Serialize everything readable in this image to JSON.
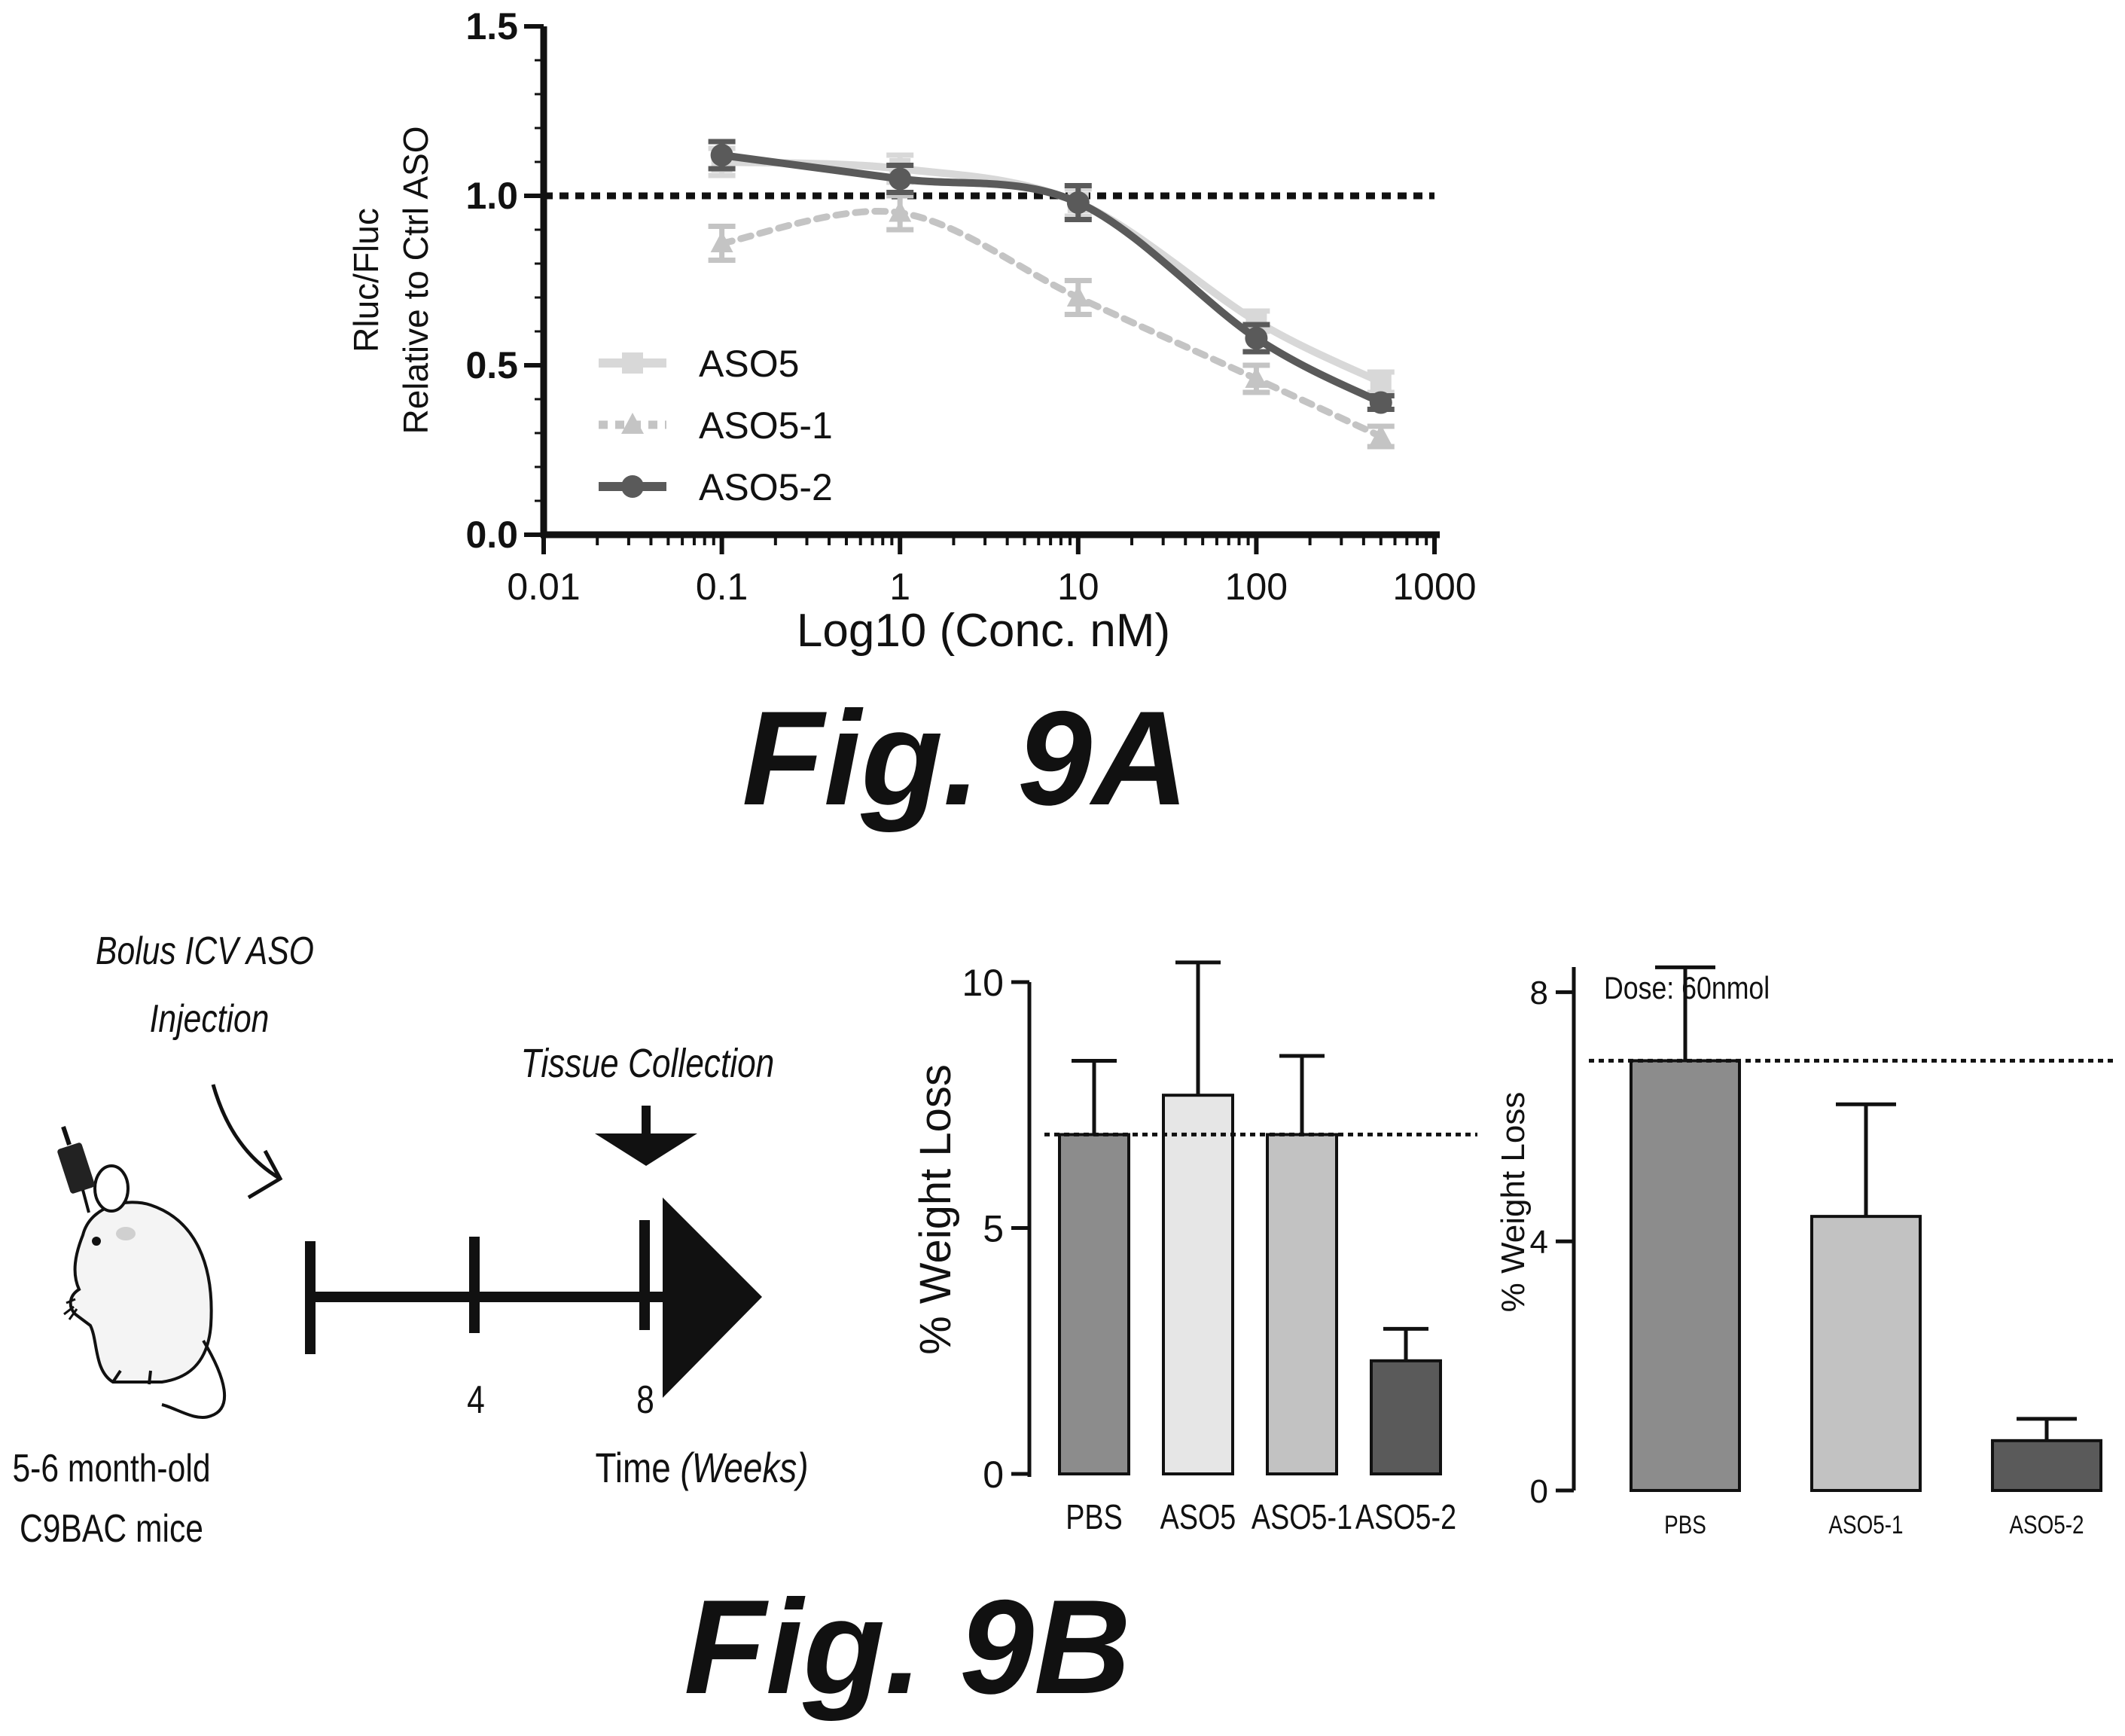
{
  "figure_labels": {
    "fig_9a": "Fig. 9A",
    "fig_9b": "Fig. 9B"
  },
  "colors": {
    "aso5": "#d8d8d8",
    "aso5_1": "#c4c4c4",
    "aso5_2": "#5a5a5a",
    "pbs_bar": "#8c8c8c",
    "aso5_bar": "#e6e6e6",
    "aso5_1_bar": "#c2c2c2",
    "aso5_2_bar": "#5a5a5a",
    "ink": "#111111"
  },
  "schematic": {
    "injection_label_line1": "Bolus ICV ASO",
    "injection_label_line2": "Injection",
    "collection_label": "Tissue Collection",
    "tick_4": "4",
    "tick_8": "8",
    "time_label_prefix": "Time ",
    "time_label_units": "(Weeks)",
    "mice_label_line1": "5-6 month-old",
    "mice_label_line2": "C9BAC mice"
  },
  "chart_data": [
    {
      "type": "line",
      "title": "",
      "xlabel": "Log10 (Conc. nM)",
      "ylabel_line1": "Rluc/Fluc",
      "ylabel_line2": "Relative to Ctrl ASO",
      "xscale": "log",
      "xlim": [
        0.01,
        1000
      ],
      "ylim": [
        0.0,
        1.5
      ],
      "xticks": [
        "0.01",
        "0.1",
        "1",
        "10",
        "100",
        "1000"
      ],
      "yticks": [
        "0.0",
        "0.5",
        "1.0",
        "1.5"
      ],
      "reference_line": 1.0,
      "legend_position": "lower-left",
      "x": [
        0.1,
        1,
        10,
        100,
        500
      ],
      "series": [
        {
          "name": "ASO5",
          "values": [
            1.1,
            1.08,
            0.98,
            0.63,
            0.45
          ],
          "errors": [
            0.04,
            0.04,
            0.04,
            0.03,
            0.03
          ],
          "style": "solid-square"
        },
        {
          "name": "ASO5-1",
          "values": [
            0.86,
            0.95,
            0.7,
            0.46,
            0.29
          ],
          "errors": [
            0.05,
            0.05,
            0.05,
            0.04,
            0.03
          ],
          "style": "dashed-triangle"
        },
        {
          "name": "ASO5-2",
          "values": [
            1.12,
            1.05,
            0.98,
            0.58,
            0.39
          ],
          "errors": [
            0.04,
            0.04,
            0.05,
            0.04,
            0.02
          ],
          "style": "solid-circle"
        }
      ]
    },
    {
      "type": "bar",
      "title": "",
      "ylabel": "% Weight Loss",
      "ylim": [
        0,
        10
      ],
      "yticks": [
        "0",
        "5",
        "10"
      ],
      "reference_line": 6.9,
      "categories": [
        "PBS",
        "ASO5",
        "ASO5-1",
        "ASO5-2"
      ],
      "values": [
        6.9,
        7.7,
        6.9,
        2.3
      ],
      "errors": [
        1.5,
        2.7,
        1.6,
        0.65
      ]
    },
    {
      "type": "bar",
      "title": "",
      "annotation": "Dose: 60nmol",
      "ylabel": "% Weight Loss",
      "ylim": [
        0,
        10
      ],
      "yticks": [
        "0",
        "4",
        "8"
      ],
      "reference_line": 6.9,
      "categories": [
        "PBS",
        "ASO5-1",
        "ASO5-2"
      ],
      "values": [
        6.9,
        4.4,
        0.8
      ],
      "errors": [
        1.5,
        1.8,
        0.35
      ]
    }
  ]
}
